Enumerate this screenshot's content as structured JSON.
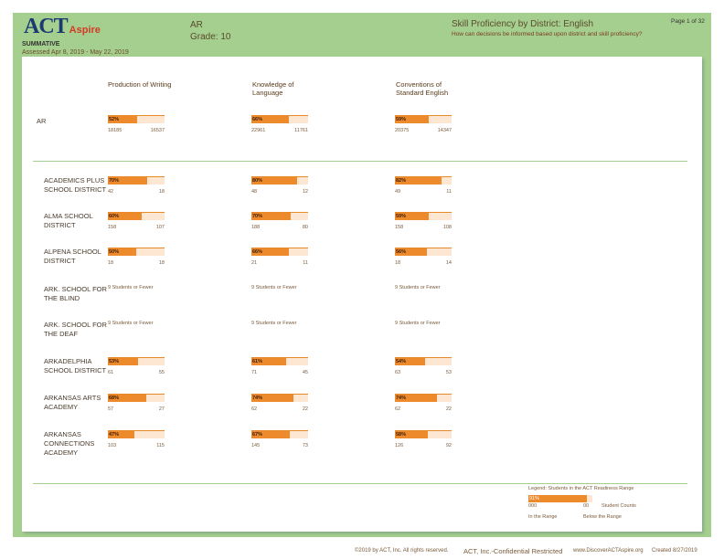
{
  "header": {
    "logo": "ACT",
    "logo_sub": "Aspire",
    "mode": "SUMMATIVE",
    "assessed": "Assessed Apr 8, 2019 - May 22, 2019",
    "state": "AR",
    "grade": "Grade: 10",
    "report_title": "Skill Proficiency by District: English",
    "question": "How can decisions be informed based upon district and skill proficiency?",
    "page": "Page 1 of 32"
  },
  "columns": [
    "Production of Writing",
    "Knowledge of Language",
    "Conventions of Standard English"
  ],
  "state_row": {
    "name": "AR",
    "cells": [
      {
        "pct": "52%",
        "in": "18185",
        "below": "16537",
        "frac": 0.52
      },
      {
        "pct": "66%",
        "in": "22961",
        "below": "11761",
        "frac": 0.66
      },
      {
        "pct": "59%",
        "in": "20375",
        "below": "14347",
        "frac": 0.59
      }
    ]
  },
  "rows": [
    {
      "name": "ACADEMICS PLUS SCHOOL DISTRICT",
      "cells": [
        {
          "pct": "70%",
          "in": "42",
          "below": "18",
          "frac": 0.7
        },
        {
          "pct": "80%",
          "in": "48",
          "below": "12",
          "frac": 0.8
        },
        {
          "pct": "82%",
          "in": "49",
          "below": "11",
          "frac": 0.82
        }
      ]
    },
    {
      "name": "ALMA SCHOOL DISTRICT",
      "cells": [
        {
          "pct": "60%",
          "in": "158",
          "below": "107",
          "frac": 0.6
        },
        {
          "pct": "70%",
          "in": "188",
          "below": "80",
          "frac": 0.7
        },
        {
          "pct": "59%",
          "in": "158",
          "below": "108",
          "frac": 0.59
        }
      ]
    },
    {
      "name": "ALPENA SCHOOL DISTRICT",
      "cells": [
        {
          "pct": "50%",
          "in": "18",
          "below": "18",
          "frac": 0.5
        },
        {
          "pct": "66%",
          "in": "21",
          "below": "11",
          "frac": 0.66
        },
        {
          "pct": "56%",
          "in": "18",
          "below": "14",
          "frac": 0.56
        }
      ]
    },
    {
      "name": "ARK. SCHOOL FOR THE BLIND",
      "cells": [
        {
          "few": "9 Students or Fewer"
        },
        {
          "few": "9 Students or Fewer"
        },
        {
          "few": "9 Students or Fewer"
        }
      ]
    },
    {
      "name": "ARK. SCHOOL FOR THE DEAF",
      "cells": [
        {
          "few": "9 Students or Fewer"
        },
        {
          "few": "9 Students or Fewer"
        },
        {
          "few": "9 Students or Fewer"
        }
      ]
    },
    {
      "name": "ARKADELPHIA SCHOOL DISTRICT",
      "cells": [
        {
          "pct": "53%",
          "in": "61",
          "below": "55",
          "frac": 0.53
        },
        {
          "pct": "61%",
          "in": "71",
          "below": "45",
          "frac": 0.61
        },
        {
          "pct": "54%",
          "in": "63",
          "below": "53",
          "frac": 0.54
        }
      ]
    },
    {
      "name": "ARKANSAS ARTS ACADEMY",
      "cells": [
        {
          "pct": "68%",
          "in": "57",
          "below": "27",
          "frac": 0.68
        },
        {
          "pct": "74%",
          "in": "62",
          "below": "22",
          "frac": 0.74
        },
        {
          "pct": "74%",
          "in": "62",
          "below": "22",
          "frac": 0.74
        }
      ]
    },
    {
      "name": "ARKANSAS CONNECTIONS ACADEMY",
      "cells": [
        {
          "pct": "47%",
          "in": "103",
          "below": "115",
          "frac": 0.47
        },
        {
          "pct": "67%",
          "in": "145",
          "below": "73",
          "frac": 0.67
        },
        {
          "pct": "58%",
          "in": "126",
          "below": "92",
          "frac": 0.58
        }
      ]
    }
  ],
  "legend": {
    "title": "Legend: Students in the ACT Readiness Range",
    "pct": "91%",
    "in": "000",
    "below": "00",
    "counts": "Student Counts",
    "in_label": "In the Range",
    "below_label": "Below the Range",
    "frac": 0.91
  },
  "footer": {
    "copyright": "©2019 by ACT, Inc. All rights reserved.",
    "confidential": "ACT, Inc.-Confidential Restricted",
    "url": "www.DiscoverACTAspire.org",
    "created": "Created 8/27/2019"
  },
  "colors": {
    "frame": "#a5cf8e",
    "in_range": "#ec8a2c",
    "below_range": "#fde6d2"
  }
}
